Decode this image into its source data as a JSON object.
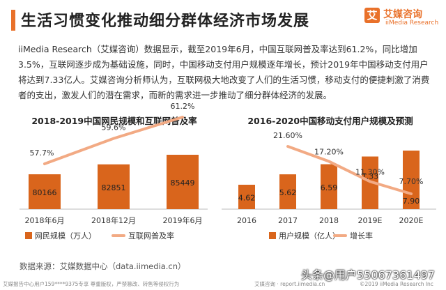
{
  "header": {
    "title": "生活习惯变化推动细分群体经济市场发展",
    "logo_mark": "艾",
    "logo_cn": "艾媒咨询",
    "logo_en": "iiMedia Research"
  },
  "intro_text": "iiMedia Research（艾媒咨询）数据显示，截至2019年6月，中国互联网普及率达到61.2%，同比增加3.5%，互联网逐步成为基础设施，同时，中国移动支付用户规模逐年增长，预计2019年中国移动支付用户将达到7.33亿人。艾媒咨询分析师认为，互联网极大地改变了人们的生活习惯，移动支付的便捷刺激了消费者的支出，激发人们的潜在需求，而新的需求进一步推动了细分群体经济的发展。",
  "colors": {
    "accent": "#e9712a",
    "bar": "#d9651c",
    "line": "#f2aa84"
  },
  "chart_data": [
    {
      "type": "bar",
      "title": "2018-2019中国网民规模和互联网普及率",
      "categories": [
        "2018年6月",
        "2018年12月",
        "2019年6月"
      ],
      "series": [
        {
          "name": "网民规模（万人）",
          "type": "bar",
          "values": [
            80166,
            82851,
            85449
          ],
          "labels": [
            "80166",
            "82851",
            "85449"
          ]
        },
        {
          "name": "互联网普及率",
          "type": "line",
          "values": [
            57.7,
            59.6,
            61.2
          ],
          "labels": [
            "57.7%",
            "59.6%",
            "61.2%"
          ]
        }
      ],
      "legend_position": "bottom"
    },
    {
      "type": "bar",
      "title": "2016-2020中国移动支付用户规模及预测",
      "categories": [
        "2016",
        "2017",
        "2018",
        "2019E",
        "2020E"
      ],
      "series": [
        {
          "name": "用户规模（亿人）",
          "type": "bar",
          "values": [
            4.62,
            5.62,
            6.59,
            7.33,
            7.9
          ],
          "labels": [
            "4.62",
            "5.62",
            "6.59",
            "7.33",
            "7.90"
          ]
        },
        {
          "name": "增长率",
          "type": "line",
          "values": [
            null,
            21.6,
            17.2,
            11.3,
            7.7
          ],
          "labels": [
            "",
            "21.60%",
            "17.20%",
            "11.30%",
            "7.70%"
          ]
        }
      ],
      "legend_position": "bottom"
    }
  ],
  "source_text": "数据来源：艾媒数据中心（data.iimedia.cn）",
  "watermark_text": "头条@用户55067361497",
  "footer": {
    "left": "艾媒报告中心用户159****9375专享 尊重版权，严禁篡改、转售等侵权行为",
    "site": "艾媒咨询 · report.iimedia.cn",
    "right": "©2019 iiMedia Research Inc"
  }
}
